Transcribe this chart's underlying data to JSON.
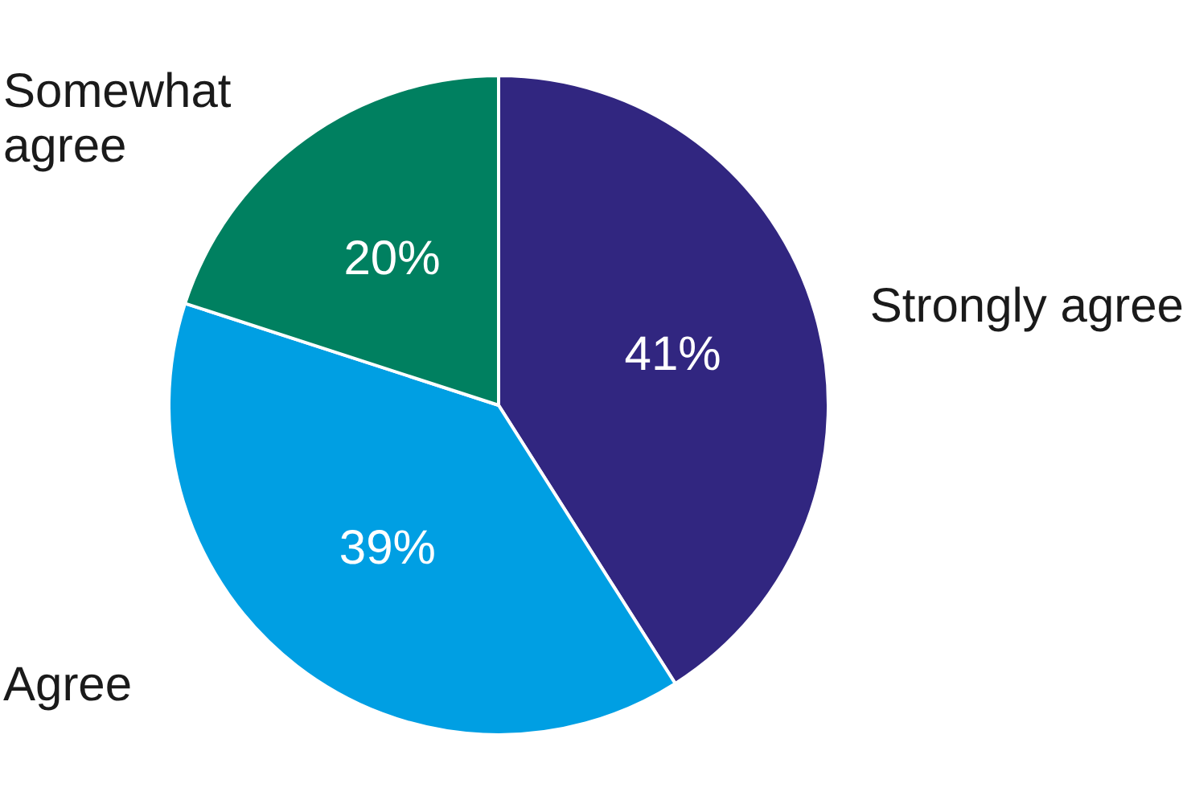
{
  "chart_data": {
    "type": "pie",
    "categories": [
      "Strongly agree",
      "Agree",
      "Somewhat agree"
    ],
    "values": [
      41,
      39,
      20
    ],
    "colors": [
      "#312680",
      "#009fe3",
      "#008060"
    ],
    "value_labels": [
      "41%",
      "39%",
      "20%"
    ]
  }
}
